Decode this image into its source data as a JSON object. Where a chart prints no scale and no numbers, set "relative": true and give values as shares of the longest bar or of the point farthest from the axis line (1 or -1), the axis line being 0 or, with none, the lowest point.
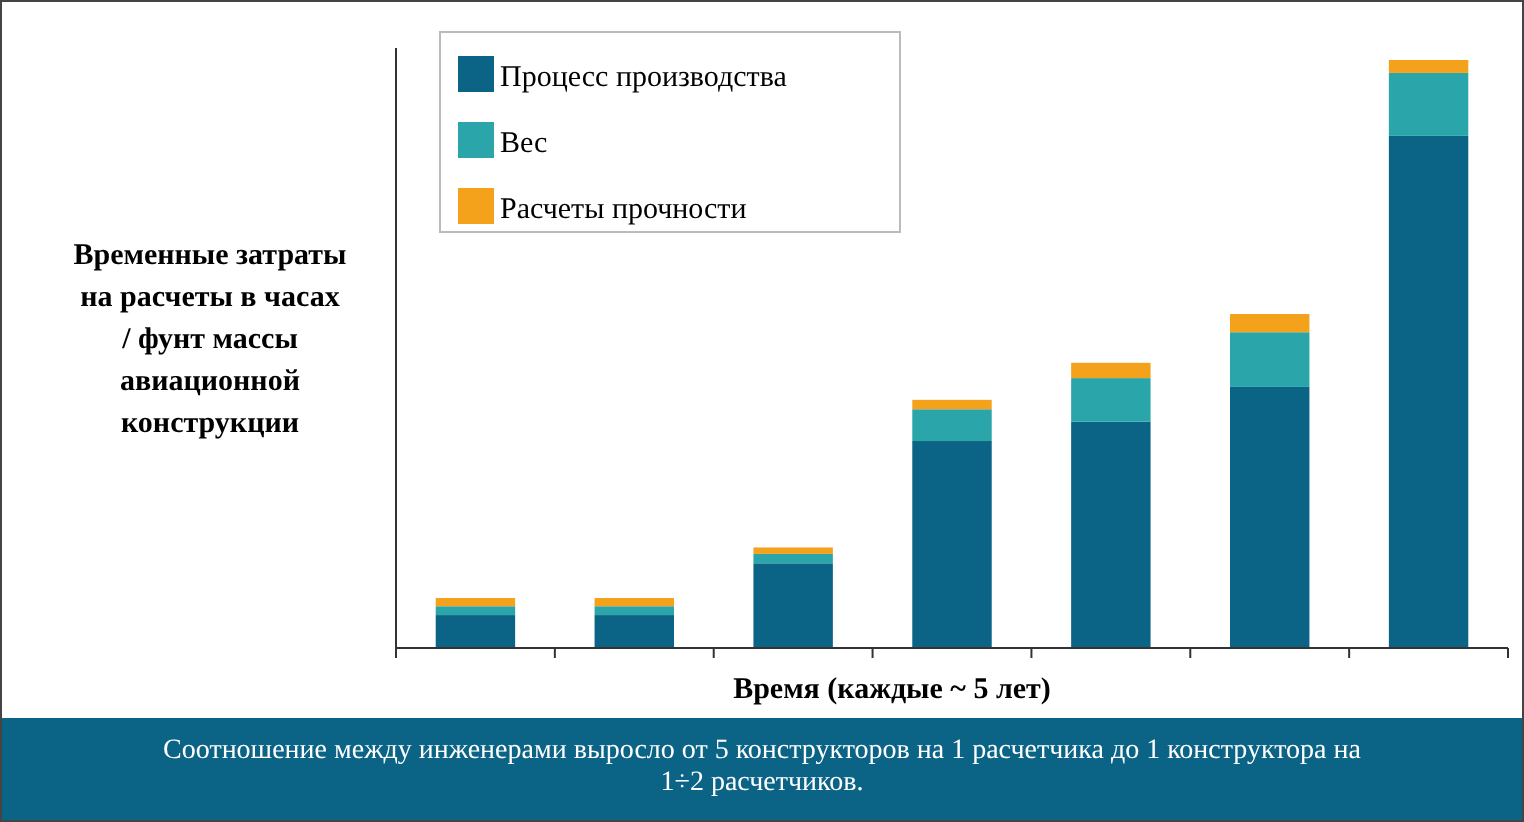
{
  "chart_data": {
    "type": "bar",
    "stacked": true,
    "relative": true,
    "ylabel": "Временные затраты на расчеты в часах / фунт массы авиационной конструкции",
    "xlabel": "Время (каждые ~ 5 лет)",
    "categories": [
      null,
      null,
      null,
      null,
      null,
      null,
      null
    ],
    "series": [
      {
        "name": "Процесс производства",
        "color": "#0b6485",
        "values": [
          0.056,
          0.056,
          0.144,
          0.352,
          0.385,
          0.444,
          0.871
        ]
      },
      {
        "name": "Вес",
        "color": "#2aa6ab",
        "values": [
          0.015,
          0.015,
          0.016,
          0.054,
          0.074,
          0.093,
          0.107
        ]
      },
      {
        "name": "Расчеты прочности",
        "color": "#f4a21c",
        "values": [
          0.014,
          0.014,
          0.011,
          0.016,
          0.026,
          0.031,
          0.022
        ]
      }
    ],
    "legend": "top left",
    "annotations": [
      "Соотношение между инженерами выросло от 5 конструкторов на 1 расчетчика до 1 конструктора на 1÷2 расчетчиков."
    ]
  }
}
